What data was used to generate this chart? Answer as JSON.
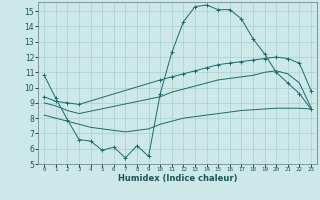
{
  "xlabel": "Humidex (Indice chaleur)",
  "bg_color": "#cce8e8",
  "grid_color": "#aacfcf",
  "line_color": "#1a6b6b",
  "xlim": [
    -0.5,
    23.5
  ],
  "ylim": [
    5,
    15.6
  ],
  "xticks": [
    0,
    1,
    2,
    3,
    4,
    5,
    6,
    7,
    8,
    9,
    10,
    11,
    12,
    13,
    14,
    15,
    16,
    17,
    18,
    19,
    20,
    21,
    22,
    23
  ],
  "yticks": [
    5,
    6,
    7,
    8,
    9,
    10,
    11,
    12,
    13,
    14,
    15
  ],
  "series": [
    {
      "x": [
        0,
        1,
        2,
        3,
        4,
        5,
        6,
        7,
        8,
        9,
        10,
        11,
        12,
        13,
        14,
        15,
        16,
        17,
        18,
        19,
        20,
        21,
        22,
        23
      ],
      "y": [
        10.8,
        9.3,
        7.9,
        6.6,
        6.5,
        5.9,
        6.1,
        5.4,
        6.2,
        5.5,
        9.6,
        12.3,
        14.3,
        15.3,
        15.4,
        15.1,
        15.1,
        14.5,
        13.2,
        12.2,
        11.0,
        10.3,
        9.6,
        8.6
      ],
      "marker": "+"
    },
    {
      "x": [
        0,
        1,
        2,
        3,
        10,
        11,
        12,
        13,
        14,
        15,
        16,
        17,
        18,
        19,
        20,
        21,
        22,
        23
      ],
      "y": [
        9.0,
        8.8,
        8.5,
        8.3,
        9.4,
        9.7,
        9.9,
        10.1,
        10.3,
        10.5,
        10.6,
        10.7,
        10.8,
        11.0,
        11.1,
        10.9,
        10.3,
        8.7
      ],
      "marker": null
    },
    {
      "x": [
        0,
        1,
        2,
        3,
        4,
        5,
        6,
        7,
        8,
        9,
        10,
        11,
        12,
        13,
        14,
        15,
        16,
        17,
        18,
        19,
        20,
        21,
        22,
        23
      ],
      "y": [
        8.2,
        8.0,
        7.8,
        7.6,
        7.4,
        7.3,
        7.2,
        7.1,
        7.2,
        7.3,
        7.6,
        7.8,
        8.0,
        8.1,
        8.2,
        8.3,
        8.4,
        8.5,
        8.55,
        8.6,
        8.65,
        8.65,
        8.65,
        8.6
      ],
      "marker": null
    },
    {
      "x": [
        0,
        1,
        2,
        3,
        10,
        11,
        12,
        13,
        14,
        15,
        16,
        17,
        18,
        19,
        20,
        21,
        22,
        23
      ],
      "y": [
        9.4,
        9.1,
        9.0,
        8.9,
        10.5,
        10.7,
        10.9,
        11.1,
        11.3,
        11.5,
        11.6,
        11.7,
        11.8,
        11.9,
        12.0,
        11.9,
        11.6,
        9.8
      ],
      "marker": "+"
    }
  ]
}
